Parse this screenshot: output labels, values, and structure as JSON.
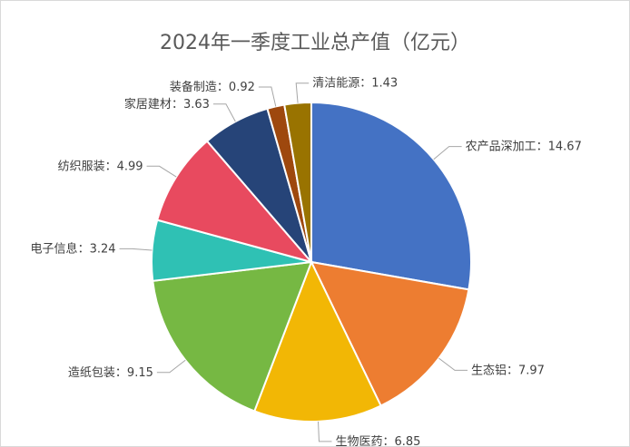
{
  "chart_data": {
    "type": "pie",
    "title": "2024年一季度工业总产值（亿元）",
    "categories": [
      "农产品深加工",
      "生态铝",
      "生物医药",
      "造纸包装",
      "电子信息",
      "纺织服装",
      "家居建材",
      "装备制造",
      "清洁能源"
    ],
    "values": [
      14.67,
      7.97,
      6.85,
      9.15,
      3.24,
      4.99,
      3.63,
      0.92,
      1.43
    ],
    "colors": [
      "#4472c4",
      "#ed7d31",
      "#f2b705",
      "#76b843",
      "#2fc1b4",
      "#e84a5f",
      "#264478",
      "#9e480e",
      "#997300"
    ],
    "separator": "："
  }
}
